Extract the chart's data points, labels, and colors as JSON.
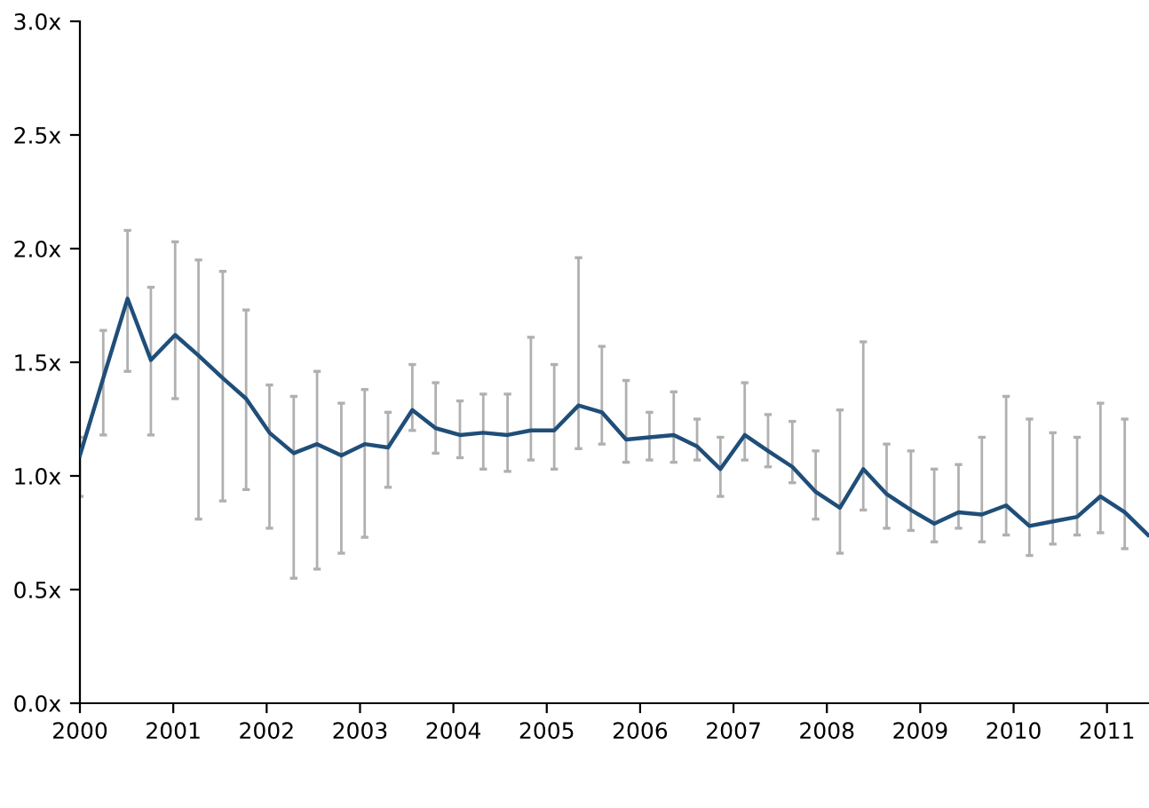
{
  "chart_data": {
    "type": "line",
    "x": [
      2000.0,
      2000.25,
      2000.51,
      2000.76,
      2001.02,
      2001.27,
      2001.53,
      2001.78,
      2002.03,
      2002.29,
      2002.54,
      2002.8,
      2003.05,
      2003.3,
      2003.56,
      2003.81,
      2004.07,
      2004.32,
      2004.58,
      2004.83,
      2005.08,
      2005.34,
      2005.59,
      2005.85,
      2006.1,
      2006.36,
      2006.61,
      2006.86,
      2007.12,
      2007.37,
      2007.63,
      2007.88,
      2008.14,
      2008.39,
      2008.64,
      2008.9,
      2009.15,
      2009.41,
      2009.66,
      2009.92,
      2010.17,
      2010.42,
      2010.68,
      2010.93,
      2011.19,
      2011.44
    ],
    "series": [
      {
        "color": "#1f4e79",
        "values": [
          1.09,
          1.43,
          1.78,
          1.51,
          1.62,
          1.53,
          1.43,
          1.34,
          1.19,
          1.1,
          1.14,
          1.09,
          1.14,
          1.125,
          1.29,
          1.21,
          1.18,
          1.19,
          1.18,
          1.2,
          1.2,
          1.31,
          1.28,
          1.16,
          1.17,
          1.18,
          1.13,
          1.03,
          1.18,
          1.11,
          1.04,
          0.93,
          0.86,
          1.03,
          0.92,
          0.85,
          0.79,
          0.84,
          0.83,
          0.87,
          0.78,
          0.8,
          0.82,
          0.91,
          0.84,
          0.74
        ],
        "errors": [
          [
            0.91,
            1.17
          ],
          [
            1.18,
            1.64
          ],
          [
            1.46,
            2.08
          ],
          [
            1.18,
            1.83
          ],
          [
            1.34,
            2.03
          ],
          [
            0.81,
            1.95
          ],
          [
            0.89,
            1.9
          ],
          [
            0.94,
            1.73
          ],
          [
            0.77,
            1.4
          ],
          [
            0.55,
            1.35
          ],
          [
            0.59,
            1.46
          ],
          [
            0.66,
            1.32
          ],
          [
            0.73,
            1.38
          ],
          [
            0.95,
            1.28
          ],
          [
            1.2,
            1.49
          ],
          [
            1.1,
            1.41
          ],
          [
            1.08,
            1.33
          ],
          [
            1.03,
            1.36
          ],
          [
            1.02,
            1.36
          ],
          [
            1.07,
            1.61
          ],
          [
            1.03,
            1.49
          ],
          [
            1.12,
            1.96
          ],
          [
            1.14,
            1.57
          ],
          [
            1.06,
            1.42
          ],
          [
            1.07,
            1.28
          ],
          [
            1.06,
            1.37
          ],
          [
            1.07,
            1.25
          ],
          [
            0.91,
            1.17
          ],
          [
            1.07,
            1.41
          ],
          [
            1.04,
            1.27
          ],
          [
            0.97,
            1.24
          ],
          [
            0.81,
            1.11
          ],
          [
            0.66,
            1.29
          ],
          [
            0.85,
            1.59
          ],
          [
            0.77,
            1.14
          ],
          [
            0.76,
            1.11
          ],
          [
            0.71,
            1.03
          ],
          [
            0.77,
            1.05
          ],
          [
            0.71,
            1.17
          ],
          [
            0.74,
            1.35
          ],
          [
            0.65,
            1.25
          ],
          [
            0.7,
            1.19
          ],
          [
            0.74,
            1.17
          ],
          [
            0.75,
            1.32
          ],
          [
            0.68,
            1.25
          ],
          null
        ]
      }
    ],
    "xlim": [
      2000,
      2011.45
    ],
    "xticks": [
      2000,
      2001,
      2002,
      2003,
      2004,
      2005,
      2006,
      2007,
      2008,
      2009,
      2010,
      2011
    ],
    "ylim": [
      0,
      3
    ],
    "yticks": [
      {
        "value": 0,
        "label": "0.0x"
      },
      {
        "value": 0.5,
        "label": "0.5x"
      },
      {
        "value": 1,
        "label": "1.0x"
      },
      {
        "value": 1.5,
        "label": "1.5x"
      },
      {
        "value": 2,
        "label": "2.0x"
      },
      {
        "value": 2.5,
        "label": "2.5x"
      },
      {
        "value": 3,
        "label": "3.0x"
      }
    ],
    "grid": false,
    "marker": "none",
    "line_style": "solid"
  }
}
